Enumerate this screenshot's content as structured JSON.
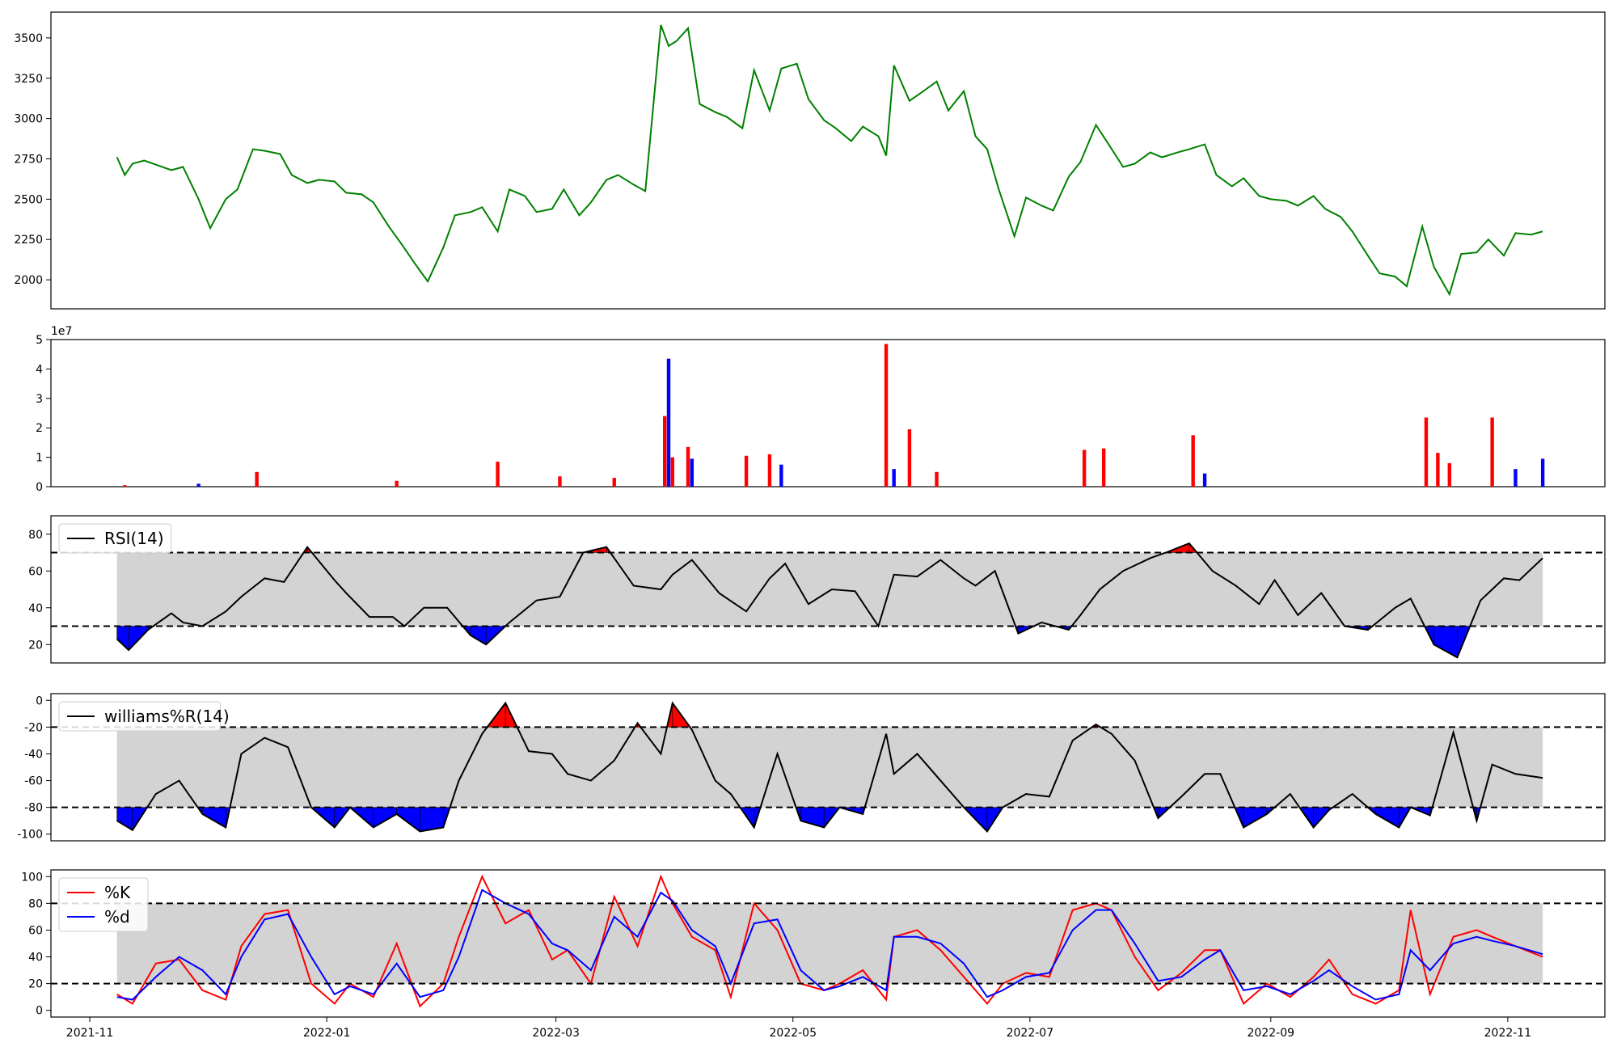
{
  "figure": {
    "background": "#ffffff",
    "shared_xaxis": {
      "type": "date",
      "range": [
        "2021-10-22",
        "2022-11-26"
      ],
      "ticks": [
        "2021-11",
        "2022-01",
        "2022-03",
        "2022-05",
        "2022-07",
        "2022-09",
        "2022-11"
      ]
    }
  },
  "chart_data": [
    {
      "id": "price",
      "type": "line",
      "ylim": [
        1820,
        3660
      ],
      "yticks": [
        2000,
        2250,
        2500,
        2750,
        3000,
        3250,
        3500
      ],
      "color": "#008000",
      "x": [
        "2021-11-08",
        "2021-11-10",
        "2021-11-12",
        "2021-11-15",
        "2021-11-22",
        "2021-11-25",
        "2021-11-29",
        "2021-12-02",
        "2021-12-06",
        "2021-12-09",
        "2021-12-13",
        "2021-12-16",
        "2021-12-20",
        "2021-12-23",
        "2021-12-27",
        "2021-12-30",
        "2022-01-03",
        "2022-01-06",
        "2022-01-10",
        "2022-01-13",
        "2022-01-17",
        "2022-01-20",
        "2022-01-24",
        "2022-01-27",
        "2022-01-31",
        "2022-02-03",
        "2022-02-07",
        "2022-02-10",
        "2022-02-14",
        "2022-02-17",
        "2022-02-21",
        "2022-02-24",
        "2022-02-28",
        "2022-03-03",
        "2022-03-07",
        "2022-03-10",
        "2022-03-14",
        "2022-03-17",
        "2022-03-21",
        "2022-03-24",
        "2022-03-28",
        "2022-03-30",
        "2022-04-01",
        "2022-04-04",
        "2022-04-07",
        "2022-04-11",
        "2022-04-14",
        "2022-04-18",
        "2022-04-21",
        "2022-04-25",
        "2022-04-28",
        "2022-05-02",
        "2022-05-05",
        "2022-05-09",
        "2022-05-12",
        "2022-05-16",
        "2022-05-19",
        "2022-05-23",
        "2022-05-25",
        "2022-05-27",
        "2022-05-31",
        "2022-06-03",
        "2022-06-07",
        "2022-06-10",
        "2022-06-14",
        "2022-06-17",
        "2022-06-20",
        "2022-06-23",
        "2022-06-27",
        "2022-06-30",
        "2022-07-04",
        "2022-07-07",
        "2022-07-11",
        "2022-07-14",
        "2022-07-18",
        "2022-07-21",
        "2022-07-25",
        "2022-07-28",
        "2022-08-01",
        "2022-08-04",
        "2022-08-08",
        "2022-08-11",
        "2022-08-15",
        "2022-08-18",
        "2022-08-22",
        "2022-08-25",
        "2022-08-29",
        "2022-09-01",
        "2022-09-05",
        "2022-09-08",
        "2022-09-12",
        "2022-09-15",
        "2022-09-19",
        "2022-09-22",
        "2022-09-26",
        "2022-09-29",
        "2022-10-03",
        "2022-10-06",
        "2022-10-10",
        "2022-10-13",
        "2022-10-17",
        "2022-10-20",
        "2022-10-24",
        "2022-10-27",
        "2022-10-31",
        "2022-11-03",
        "2022-11-07",
        "2022-11-10"
      ],
      "values": [
        2760,
        2650,
        2720,
        2740,
        2680,
        2700,
        2500,
        2320,
        2500,
        2560,
        2810,
        2800,
        2780,
        2650,
        2600,
        2620,
        2610,
        2540,
        2530,
        2480,
        2330,
        2230,
        2090,
        1990,
        2200,
        2400,
        2420,
        2450,
        2300,
        2560,
        2520,
        2420,
        2440,
        2560,
        2400,
        2480,
        2620,
        2650,
        2590,
        2550,
        3580,
        3450,
        3480,
        3560,
        3090,
        3040,
        3010,
        2940,
        3300,
        3050,
        3310,
        3340,
        3120,
        2990,
        2940,
        2860,
        2950,
        2890,
        2770,
        3330,
        3110,
        3160,
        3230,
        3050,
        3170,
        2890,
        2810,
        2560,
        2270,
        2510,
        2460,
        2430,
        2640,
        2730,
        2960,
        2850,
        2700,
        2720,
        2790,
        2760,
        2790,
        2810,
        2840,
        2650,
        2580,
        2630,
        2520,
        2500,
        2490,
        2460,
        2520,
        2440,
        2390,
        2300,
        2150,
        2040,
        2020,
        1960,
        2330,
        2080,
        1910,
        2160,
        2170,
        2250,
        2150,
        2290,
        2280,
        2300
      ]
    },
    {
      "id": "volume",
      "type": "bar",
      "ylim": [
        0,
        5
      ],
      "yticks": [
        0,
        1,
        2,
        3,
        4,
        5
      ],
      "multiplier": "1e7",
      "colors": {
        "up": "#ff0000",
        "down": "#0000ff"
      },
      "x": [
        "2021-11-10",
        "2021-11-29",
        "2021-12-14",
        "2022-01-19",
        "2022-02-14",
        "2022-03-02",
        "2022-03-16",
        "2022-03-29",
        "2022-03-30",
        "2022-03-31",
        "2022-04-04",
        "2022-04-05",
        "2022-04-19",
        "2022-04-25",
        "2022-04-28",
        "2022-05-25",
        "2022-05-27",
        "2022-05-31",
        "2022-06-07",
        "2022-07-15",
        "2022-07-20",
        "2022-08-12",
        "2022-08-15",
        "2022-10-11",
        "2022-10-14",
        "2022-10-17",
        "2022-10-28",
        "2022-11-03",
        "2022-11-10"
      ],
      "values": [
        0.05,
        0.1,
        0.5,
        0.2,
        0.85,
        0.35,
        0.3,
        2.4,
        4.35,
        1.0,
        1.35,
        0.95,
        1.05,
        1.1,
        0.75,
        4.85,
        0.6,
        1.95,
        0.5,
        1.25,
        1.3,
        1.75,
        0.45,
        2.35,
        1.15,
        0.8,
        2.35,
        0.6,
        0.95
      ],
      "direction": [
        "up",
        "down",
        "up",
        "up",
        "up",
        "up",
        "up",
        "up",
        "down",
        "up",
        "up",
        "down",
        "up",
        "up",
        "down",
        "up",
        "down",
        "up",
        "up",
        "up",
        "up",
        "up",
        "down",
        "up",
        "up",
        "up",
        "up",
        "down",
        "down"
      ]
    },
    {
      "id": "rsi",
      "type": "line",
      "legend": "RSI(14)",
      "ylim": [
        10,
        90
      ],
      "yticks": [
        20,
        40,
        60,
        80
      ],
      "upper": 70,
      "lower": 30,
      "band_color": "#d3d3d3",
      "over_color": "#ff0000",
      "under_color": "#0000ff",
      "x": [
        "2021-11-08",
        "2021-11-11",
        "2021-11-16",
        "2021-11-22",
        "2021-11-25",
        "2021-11-30",
        "2021-12-06",
        "2021-12-10",
        "2021-12-16",
        "2021-12-21",
        "2021-12-27",
        "2022-01-03",
        "2022-01-06",
        "2022-01-12",
        "2022-01-18",
        "2022-01-21",
        "2022-01-26",
        "2022-02-01",
        "2022-02-07",
        "2022-02-11",
        "2022-02-17",
        "2022-02-24",
        "2022-03-02",
        "2022-03-08",
        "2022-03-14",
        "2022-03-21",
        "2022-03-28",
        "2022-03-31",
        "2022-04-05",
        "2022-04-12",
        "2022-04-19",
        "2022-04-25",
        "2022-04-29",
        "2022-05-05",
        "2022-05-11",
        "2022-05-17",
        "2022-05-23",
        "2022-05-27",
        "2022-06-02",
        "2022-06-08",
        "2022-06-14",
        "2022-06-17",
        "2022-06-22",
        "2022-06-28",
        "2022-07-04",
        "2022-07-11",
        "2022-07-14",
        "2022-07-19",
        "2022-07-25",
        "2022-08-01",
        "2022-08-05",
        "2022-08-11",
        "2022-08-17",
        "2022-08-23",
        "2022-08-29",
        "2022-09-02",
        "2022-09-08",
        "2022-09-14",
        "2022-09-20",
        "2022-09-26",
        "2022-10-03",
        "2022-10-07",
        "2022-10-13",
        "2022-10-19",
        "2022-10-25",
        "2022-10-31",
        "2022-11-04",
        "2022-11-10"
      ],
      "values": [
        23,
        17,
        28,
        37,
        32,
        30,
        38,
        46,
        56,
        54,
        73,
        55,
        48,
        35,
        35,
        30,
        40,
        40,
        25,
        20,
        32,
        44,
        46,
        70,
        73,
        52,
        50,
        58,
        66,
        48,
        38,
        56,
        64,
        42,
        50,
        49,
        30,
        58,
        57,
        66,
        56,
        52,
        60,
        26,
        32,
        28,
        36,
        50,
        60,
        67,
        70,
        75,
        60,
        52,
        42,
        55,
        36,
        48,
        30,
        28,
        40,
        45,
        20,
        13,
        44,
        56,
        55,
        67
      ]
    },
    {
      "id": "williams",
      "type": "line",
      "legend": "williams%R(14)",
      "ylim": [
        -105,
        5
      ],
      "yticks": [
        0,
        -20,
        -40,
        -60,
        -80,
        -100
      ],
      "upper": -20,
      "lower": -80,
      "band_color": "#d3d3d3",
      "over_color": "#ff0000",
      "under_color": "#0000ff",
      "x": [
        "2021-11-08",
        "2021-11-12",
        "2021-11-18",
        "2021-11-24",
        "2021-11-30",
        "2021-12-06",
        "2021-12-10",
        "2021-12-16",
        "2021-12-22",
        "2021-12-28",
        "2022-01-03",
        "2022-01-07",
        "2022-01-13",
        "2022-01-19",
        "2022-01-25",
        "2022-01-31",
        "2022-02-04",
        "2022-02-10",
        "2022-02-16",
        "2022-02-22",
        "2022-02-28",
        "2022-03-04",
        "2022-03-10",
        "2022-03-16",
        "2022-03-22",
        "2022-03-28",
        "2022-03-31",
        "2022-04-05",
        "2022-04-11",
        "2022-04-15",
        "2022-04-21",
        "2022-04-27",
        "2022-05-03",
        "2022-05-09",
        "2022-05-13",
        "2022-05-19",
        "2022-05-25",
        "2022-05-27",
        "2022-06-02",
        "2022-06-08",
        "2022-06-14",
        "2022-06-20",
        "2022-06-24",
        "2022-06-30",
        "2022-07-06",
        "2022-07-12",
        "2022-07-18",
        "2022-07-22",
        "2022-07-28",
        "2022-08-03",
        "2022-08-09",
        "2022-08-15",
        "2022-08-19",
        "2022-08-25",
        "2022-08-31",
        "2022-09-06",
        "2022-09-12",
        "2022-09-16",
        "2022-09-22",
        "2022-09-28",
        "2022-10-04",
        "2022-10-07",
        "2022-10-12",
        "2022-10-18",
        "2022-10-24",
        "2022-10-28",
        "2022-11-03",
        "2022-11-10"
      ],
      "values": [
        -90,
        -97,
        -70,
        -60,
        -85,
        -95,
        -40,
        -28,
        -35,
        -80,
        -95,
        -80,
        -95,
        -85,
        -98,
        -95,
        -60,
        -25,
        -2,
        -38,
        -40,
        -55,
        -60,
        -45,
        -17,
        -40,
        -2,
        -22,
        -60,
        -70,
        -95,
        -40,
        -90,
        -95,
        -80,
        -85,
        -25,
        -55,
        -40,
        -60,
        -80,
        -98,
        -80,
        -70,
        -72,
        -30,
        -18,
        -25,
        -45,
        -88,
        -72,
        -55,
        -55,
        -95,
        -85,
        -70,
        -95,
        -82,
        -70,
        -85,
        -95,
        -80,
        -86,
        -24,
        -90,
        -48,
        -55,
        -58
      ]
    },
    {
      "id": "stochastic",
      "type": "line",
      "ylim": [
        -5,
        105
      ],
      "yticks": [
        0,
        20,
        40,
        60,
        80,
        100
      ],
      "upper": 80,
      "lower": 20,
      "band_color": "#d3d3d3",
      "series": [
        {
          "name": "%K",
          "color": "#ff0000",
          "x": [
            "2021-11-08",
            "2021-11-12",
            "2021-11-18",
            "2021-11-24",
            "2021-11-30",
            "2021-12-06",
            "2021-12-10",
            "2021-12-16",
            "2021-12-22",
            "2021-12-28",
            "2022-01-03",
            "2022-01-07",
            "2022-01-13",
            "2022-01-19",
            "2022-01-25",
            "2022-01-31",
            "2022-02-04",
            "2022-02-10",
            "2022-02-16",
            "2022-02-22",
            "2022-02-28",
            "2022-03-04",
            "2022-03-10",
            "2022-03-16",
            "2022-03-22",
            "2022-03-28",
            "2022-03-31",
            "2022-04-05",
            "2022-04-11",
            "2022-04-15",
            "2022-04-21",
            "2022-04-27",
            "2022-05-03",
            "2022-05-09",
            "2022-05-13",
            "2022-05-19",
            "2022-05-25",
            "2022-05-27",
            "2022-06-02",
            "2022-06-08",
            "2022-06-14",
            "2022-06-20",
            "2022-06-24",
            "2022-06-30",
            "2022-07-06",
            "2022-07-12",
            "2022-07-18",
            "2022-07-22",
            "2022-07-28",
            "2022-08-03",
            "2022-08-09",
            "2022-08-15",
            "2022-08-19",
            "2022-08-25",
            "2022-08-31",
            "2022-09-06",
            "2022-09-12",
            "2022-09-16",
            "2022-09-22",
            "2022-09-28",
            "2022-10-04",
            "2022-10-07",
            "2022-10-12",
            "2022-10-18",
            "2022-10-24",
            "2022-10-28",
            "2022-11-03",
            "2022-11-10"
          ],
          "values": [
            12,
            5,
            35,
            38,
            15,
            8,
            48,
            72,
            75,
            20,
            5,
            20,
            10,
            50,
            3,
            20,
            55,
            100,
            65,
            75,
            38,
            45,
            20,
            85,
            48,
            100,
            80,
            55,
            45,
            10,
            80,
            60,
            20,
            15,
            20,
            30,
            8,
            55,
            60,
            45,
            25,
            5,
            20,
            28,
            25,
            75,
            80,
            75,
            40,
            15,
            28,
            45,
            45,
            5,
            20,
            10,
            25,
            38,
            12,
            5,
            15,
            75,
            12,
            55,
            60,
            55,
            48,
            40
          ]
        },
        {
          "name": "%d",
          "color": "#0000ff",
          "x": [
            "2021-11-08",
            "2021-11-12",
            "2021-11-18",
            "2021-11-24",
            "2021-11-30",
            "2021-12-06",
            "2021-12-10",
            "2021-12-16",
            "2021-12-22",
            "2021-12-28",
            "2022-01-03",
            "2022-01-07",
            "2022-01-13",
            "2022-01-19",
            "2022-01-25",
            "2022-01-31",
            "2022-02-04",
            "2022-02-10",
            "2022-02-16",
            "2022-02-22",
            "2022-02-28",
            "2022-03-04",
            "2022-03-10",
            "2022-03-16",
            "2022-03-22",
            "2022-03-28",
            "2022-03-31",
            "2022-04-05",
            "2022-04-11",
            "2022-04-15",
            "2022-04-21",
            "2022-04-27",
            "2022-05-03",
            "2022-05-09",
            "2022-05-13",
            "2022-05-19",
            "2022-05-25",
            "2022-05-27",
            "2022-06-02",
            "2022-06-08",
            "2022-06-14",
            "2022-06-20",
            "2022-06-24",
            "2022-06-30",
            "2022-07-06",
            "2022-07-12",
            "2022-07-18",
            "2022-07-22",
            "2022-07-28",
            "2022-08-03",
            "2022-08-09",
            "2022-08-15",
            "2022-08-19",
            "2022-08-25",
            "2022-08-31",
            "2022-09-06",
            "2022-09-12",
            "2022-09-16",
            "2022-09-22",
            "2022-09-28",
            "2022-10-04",
            "2022-10-07",
            "2022-10-12",
            "2022-10-18",
            "2022-10-24",
            "2022-10-28",
            "2022-11-03",
            "2022-11-10"
          ],
          "values": [
            10,
            8,
            25,
            40,
            30,
            12,
            40,
            68,
            72,
            40,
            12,
            18,
            12,
            35,
            10,
            15,
            40,
            90,
            80,
            72,
            50,
            45,
            30,
            70,
            55,
            88,
            82,
            60,
            48,
            20,
            65,
            68,
            30,
            15,
            18,
            25,
            15,
            55,
            55,
            50,
            35,
            10,
            15,
            25,
            28,
            60,
            75,
            75,
            50,
            22,
            25,
            38,
            45,
            15,
            18,
            12,
            22,
            30,
            18,
            8,
            12,
            45,
            30,
            50,
            55,
            52,
            48,
            42
          ]
        }
      ]
    }
  ]
}
